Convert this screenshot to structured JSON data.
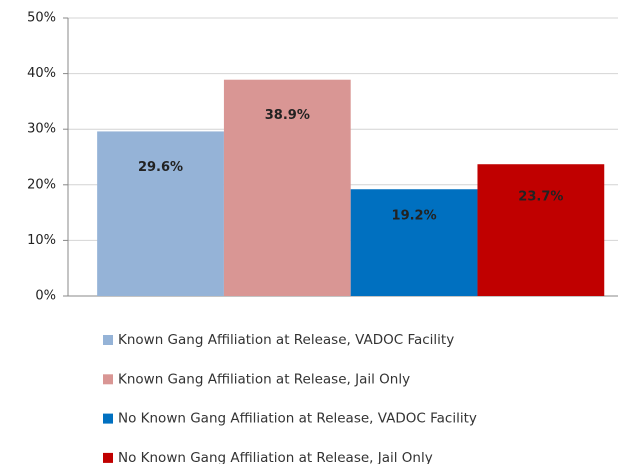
{
  "chart_data": {
    "type": "bar",
    "categories": [
      null
    ],
    "series": [
      {
        "name": "Known Gang Affiliation at Release, VADOC Facility",
        "color": "#95b3d7",
        "label_color": "#111111",
        "values": [
          29.6
        ],
        "value_labels": [
          "29.6%"
        ]
      },
      {
        "name": "Known Gang Affiliation at Release, Jail Only",
        "color": "#d99694",
        "label_color": "#111111",
        "values": [
          38.9
        ],
        "value_labels": [
          "38.9%"
        ]
      },
      {
        "name": "No Known Gang Affiliation at Release, VADOC Facility",
        "color": "#0070c0",
        "label_color": "#ffffff",
        "values": [
          19.2
        ],
        "value_labels": [
          "19.2%"
        ]
      },
      {
        "name": "No Known Gang Affiliation at Release, Jail Only",
        "color": "#c00000",
        "label_color": "#ffffff",
        "values": [
          23.7
        ],
        "value_labels": [
          "23.7%"
        ]
      }
    ],
    "ylim": [
      0,
      50
    ],
    "yticks": [
      {
        "value": 0,
        "label": "0%"
      },
      {
        "value": 10,
        "label": "10%"
      },
      {
        "value": 20,
        "label": "20%"
      },
      {
        "value": 30,
        "label": "30%"
      },
      {
        "value": 40,
        "label": "40%"
      },
      {
        "value": 50,
        "label": "50%"
      }
    ],
    "grid": true,
    "legend": "bottom"
  }
}
